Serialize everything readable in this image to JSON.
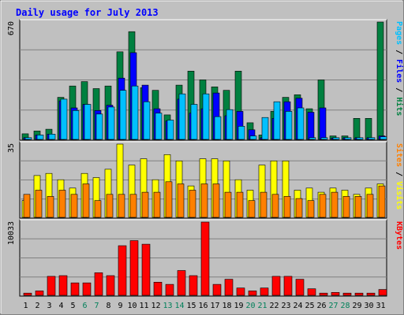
{
  "chart_data": {
    "type": "bar",
    "title": "Daily usage for July 2013",
    "x": [
      1,
      2,
      3,
      4,
      5,
      6,
      7,
      8,
      9,
      10,
      11,
      12,
      13,
      14,
      15,
      16,
      17,
      18,
      19,
      20,
      21,
      22,
      23,
      24,
      25,
      26,
      27,
      28,
      29,
      30,
      31
    ],
    "weekend_days": [
      6,
      7,
      13,
      14,
      20,
      21,
      27,
      28
    ],
    "panels": [
      {
        "name": "hits-files-pages",
        "ymax": 670,
        "ymax_label": "670",
        "right_label": [
          {
            "text": "Pages",
            "color": "#00C0FF"
          },
          {
            "text": " / ",
            "color": "#000000"
          },
          {
            "text": "Files",
            "color": "#0000FF"
          },
          {
            "text": " / ",
            "color": "#000000"
          },
          {
            "text": "Hits",
            "color": "#008040"
          }
        ],
        "series": [
          {
            "name": "Hits",
            "color": "#008040",
            "values": [
              32,
              48,
              58,
              240,
              305,
              330,
              290,
              305,
              500,
              615,
              295,
              280,
              140,
              310,
              390,
              340,
              300,
              280,
              390,
              95,
              25,
              160,
              240,
              255,
              175,
              340,
              20,
              20,
              120,
              120,
              670
            ]
          },
          {
            "name": "Files",
            "color": "#0000FF",
            "values": [
              10,
              25,
              30,
              220,
              180,
              200,
              165,
              195,
              350,
              495,
              310,
              175,
              105,
              230,
              150,
              175,
              265,
              135,
              160,
              55,
              10,
              120,
              215,
              235,
              155,
              180,
              8,
              10,
              10,
              10,
              20
            ]
          },
          {
            "name": "Pages",
            "color": "#00C0FF",
            "values": [
              10,
              25,
              30,
              230,
              165,
              200,
              145,
              185,
              280,
              305,
              215,
              150,
              110,
              260,
              200,
              260,
              130,
              170,
              75,
              20,
              125,
              215,
              160,
              180,
              10,
              10,
              10,
              10,
              10,
              10,
              15
            ]
          }
        ]
      },
      {
        "name": "visits-sites",
        "ymax": 35,
        "ymax_label": "35",
        "right_label": [
          {
            "text": "Sites",
            "color": "#FF8000"
          },
          {
            "text": " / ",
            "color": "#000000"
          },
          {
            "text": "Visits",
            "color": "#FFFF00"
          }
        ],
        "series": [
          {
            "name": "Visits",
            "color": "#FFFF00",
            "values": [
              8,
              20,
              21,
              18,
              14,
              21,
              19,
              23,
              35,
              25,
              28,
              18,
              30,
              27,
              15,
              28,
              28,
              27,
              18,
              13,
              25,
              27,
              27,
              13,
              14,
              12,
              14,
              13,
              11,
              14,
              16
            ]
          },
          {
            "name": "Sites",
            "color": "#FF8000",
            "values": [
              11,
              13,
              10,
              13,
              11,
              16,
              8,
              11,
              11,
              11,
              12,
              12,
              17,
              16,
              13,
              16,
              16,
              12,
              12,
              8,
              12,
              11,
              10,
              9,
              8,
              11,
              12,
              10,
              10,
              11,
              15
            ]
          }
        ]
      },
      {
        "name": "kbytes",
        "ymax": 10033,
        "ymax_label": "10033",
        "right_label": [
          {
            "text": "KBytes",
            "color": "#FF0000"
          }
        ],
        "series": [
          {
            "name": "KBytes",
            "color": "#FF0000",
            "values": [
              300,
              600,
              2600,
              2700,
              1700,
              1700,
              3100,
              2700,
              6800,
              7500,
              7000,
              1800,
              1500,
              3400,
              2700,
              10033,
              1500,
              2200,
              1000,
              600,
              1000,
              2600,
              2600,
              2200,
              900,
              300,
              400,
              300,
              300,
              300,
              800
            ]
          }
        ]
      }
    ]
  }
}
